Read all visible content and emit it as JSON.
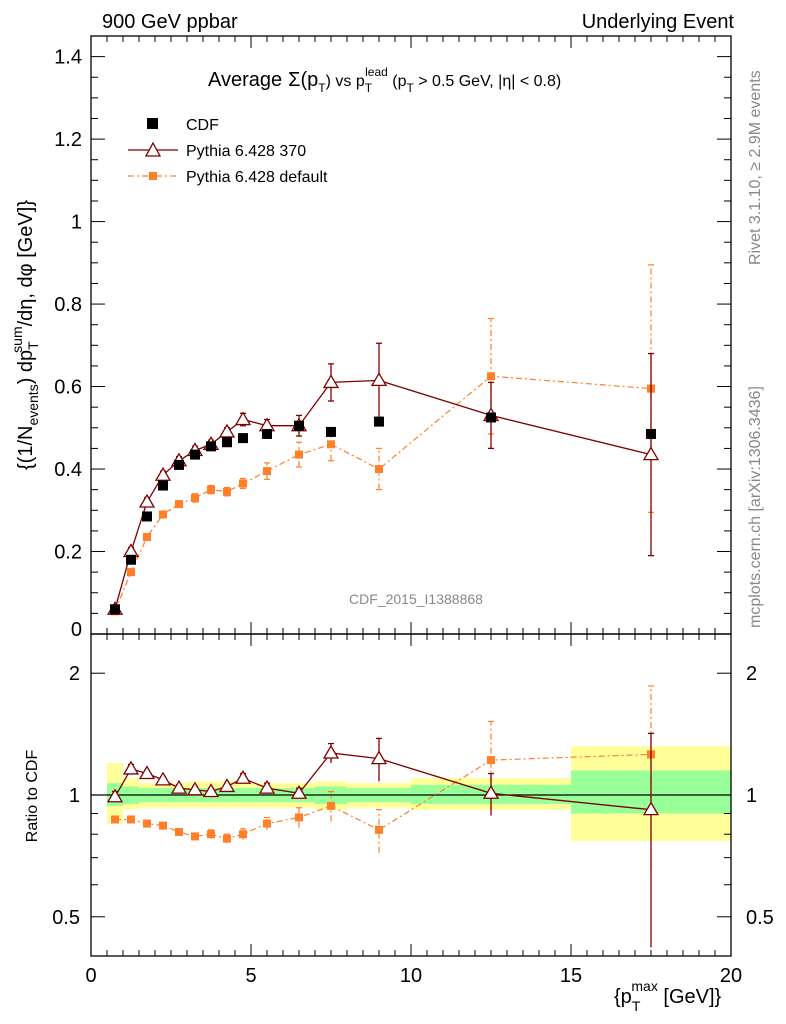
{
  "header": {
    "left": "900 GeV ppbar",
    "right": "Underlying Event"
  },
  "side_labels": {
    "rivet": "Rivet 3.1.10, ≥ 2.9M events",
    "mcplots": "mcplots.cern.ch [arXiv:1306.3436]"
  },
  "chart_data": [
    {
      "type": "scatter",
      "title": {
        "main": "Average",
        "sigma": "Σ(p",
        "sigma_sub": "T",
        "sigma_close": ")",
        "vs": " vs p",
        "sup": "lead",
        "sub": "T",
        "cond": " (p",
        "cond_sub": "T",
        "cond_rest": " > 0.5 GeV, |η| < 0.8)"
      },
      "watermark": "CDF_2015_I1388868",
      "ylabel": "{(1/N_events) dp_T^sum/dη, dφ [GeV]}",
      "ylabel_parts": {
        "a": "{(1/N",
        "a_sub": "events",
        "b": ") dp",
        "b_sup": "sum",
        "b_sub": "T",
        "c": "/dη, dφ [GeV]}"
      },
      "xlim": [
        0,
        20
      ],
      "ylim": [
        0,
        1.45
      ],
      "yticks": [
        "0",
        "0.2",
        "0.4",
        "0.6",
        "0.8",
        "1",
        "1.2",
        "1.4"
      ],
      "ytick_values": [
        0,
        0.2,
        0.4,
        0.6,
        0.8,
        1.0,
        1.2,
        1.4
      ],
      "legend_position": "top-left",
      "series": [
        {
          "name": "CDF",
          "color": "#000000",
          "marker": "square",
          "x": [
            0.75,
            1.25,
            1.75,
            2.25,
            2.75,
            3.25,
            3.75,
            4.25,
            4.75,
            5.5,
            6.5,
            7.5,
            9.0,
            12.5,
            17.5
          ],
          "y": [
            0.06,
            0.18,
            0.285,
            0.36,
            0.41,
            0.435,
            0.455,
            0.465,
            0.475,
            0.485,
            0.505,
            0.49,
            0.515,
            0.525,
            0.485
          ]
        },
        {
          "name": "Pythia 6.428 370",
          "color": "#800000",
          "marker": "triangle",
          "x": [
            0.75,
            1.25,
            1.75,
            2.25,
            2.75,
            3.25,
            3.75,
            4.25,
            4.75,
            5.5,
            6.5,
            7.5,
            9.0,
            12.5,
            17.5
          ],
          "y": [
            0.06,
            0.2,
            0.32,
            0.385,
            0.42,
            0.445,
            0.46,
            0.49,
            0.52,
            0.505,
            0.505,
            0.61,
            0.615,
            0.53,
            0.435
          ],
          "err": [
            0.005,
            0.01,
            0.01,
            0.01,
            0.01,
            0.01,
            0.01,
            0.01,
            0.015,
            0.015,
            0.025,
            0.045,
            0.09,
            0.08,
            0.245
          ]
        },
        {
          "name": "Pythia 6.428 default",
          "color": "#ff7f2a",
          "marker": "filled-square",
          "x": [
            0.75,
            1.25,
            1.75,
            2.25,
            2.75,
            3.25,
            3.75,
            4.25,
            4.75,
            5.5,
            6.5,
            7.5,
            9.0,
            12.5,
            17.5
          ],
          "y": [
            0.055,
            0.15,
            0.235,
            0.29,
            0.315,
            0.33,
            0.35,
            0.345,
            0.365,
            0.395,
            0.435,
            0.46,
            0.4,
            0.625,
            0.595
          ],
          "err": [
            0.005,
            0.008,
            0.008,
            0.008,
            0.008,
            0.01,
            0.01,
            0.01,
            0.012,
            0.02,
            0.03,
            0.04,
            0.05,
            0.14,
            0.3
          ]
        }
      ]
    },
    {
      "type": "scatter",
      "ylabel": "Ratio to CDF",
      "xlabel_parts": {
        "a": "{p",
        "sup": "max",
        "sub": "T",
        "b": " [GeV]}"
      },
      "xlim": [
        0,
        20
      ],
      "ylim": [
        0.4,
        2.5
      ],
      "log_y": true,
      "xticks": [
        "0",
        "5",
        "10",
        "15",
        "20"
      ],
      "xtick_values": [
        0,
        5,
        10,
        15,
        20
      ],
      "yticks": [
        "0.5",
        "1",
        "2"
      ],
      "ytick_values": [
        0.5,
        1,
        2
      ],
      "reference_line": 1,
      "bands": [
        {
          "x0": 0.5,
          "x1": 1.0,
          "inner": [
            0.94,
            1.07
          ],
          "outer": [
            0.85,
            1.2
          ]
        },
        {
          "x0": 1.0,
          "x1": 1.5,
          "inner": [
            0.95,
            1.05
          ],
          "outer": [
            0.92,
            1.1
          ]
        },
        {
          "x0": 1.5,
          "x1": 3.0,
          "inner": [
            0.96,
            1.04
          ],
          "outer": [
            0.93,
            1.07
          ]
        },
        {
          "x0": 3.0,
          "x1": 5.0,
          "inner": [
            0.96,
            1.04
          ],
          "outer": [
            0.93,
            1.08
          ]
        },
        {
          "x0": 5.0,
          "x1": 7.0,
          "inner": [
            0.96,
            1.04
          ],
          "outer": [
            0.93,
            1.07
          ]
        },
        {
          "x0": 7.0,
          "x1": 8.0,
          "inner": [
            0.95,
            1.05
          ],
          "outer": [
            0.92,
            1.08
          ]
        },
        {
          "x0": 8.0,
          "x1": 10.0,
          "inner": [
            0.96,
            1.04
          ],
          "outer": [
            0.93,
            1.07
          ]
        },
        {
          "x0": 10.0,
          "x1": 15.0,
          "inner": [
            0.95,
            1.06
          ],
          "outer": [
            0.92,
            1.1
          ]
        },
        {
          "x0": 15.0,
          "x1": 20.0,
          "inner": [
            0.9,
            1.15
          ],
          "outer": [
            0.77,
            1.32
          ]
        }
      ],
      "series": [
        {
          "name": "Pythia 6.428 370",
          "color": "#800000",
          "x": [
            0.75,
            1.25,
            1.75,
            2.25,
            2.75,
            3.25,
            3.75,
            4.25,
            4.75,
            5.5,
            6.5,
            7.5,
            9.0,
            12.5,
            17.5
          ],
          "y": [
            0.99,
            1.16,
            1.13,
            1.09,
            1.04,
            1.03,
            1.02,
            1.05,
            1.1,
            1.04,
            1.01,
            1.27,
            1.23,
            1.01,
            0.92
          ],
          "err": [
            0.03,
            0.03,
            0.02,
            0.02,
            0.02,
            0.02,
            0.02,
            0.02,
            0.03,
            0.03,
            0.03,
            0.07,
            0.15,
            0.12,
            0.5
          ]
        },
        {
          "name": "Pythia 6.428 default",
          "color": "#ff7f2a",
          "x": [
            0.75,
            1.25,
            1.75,
            2.25,
            2.75,
            3.25,
            3.75,
            4.25,
            4.75,
            5.5,
            6.5,
            7.5,
            9.0,
            12.5,
            17.5
          ],
          "y": [
            0.87,
            0.87,
            0.85,
            0.84,
            0.81,
            0.79,
            0.8,
            0.78,
            0.8,
            0.85,
            0.88,
            0.94,
            0.82,
            1.22,
            1.26
          ],
          "err": [
            0.015,
            0.015,
            0.015,
            0.015,
            0.015,
            0.015,
            0.02,
            0.02,
            0.025,
            0.03,
            0.05,
            0.08,
            0.1,
            0.3,
            0.6
          ]
        }
      ]
    }
  ]
}
